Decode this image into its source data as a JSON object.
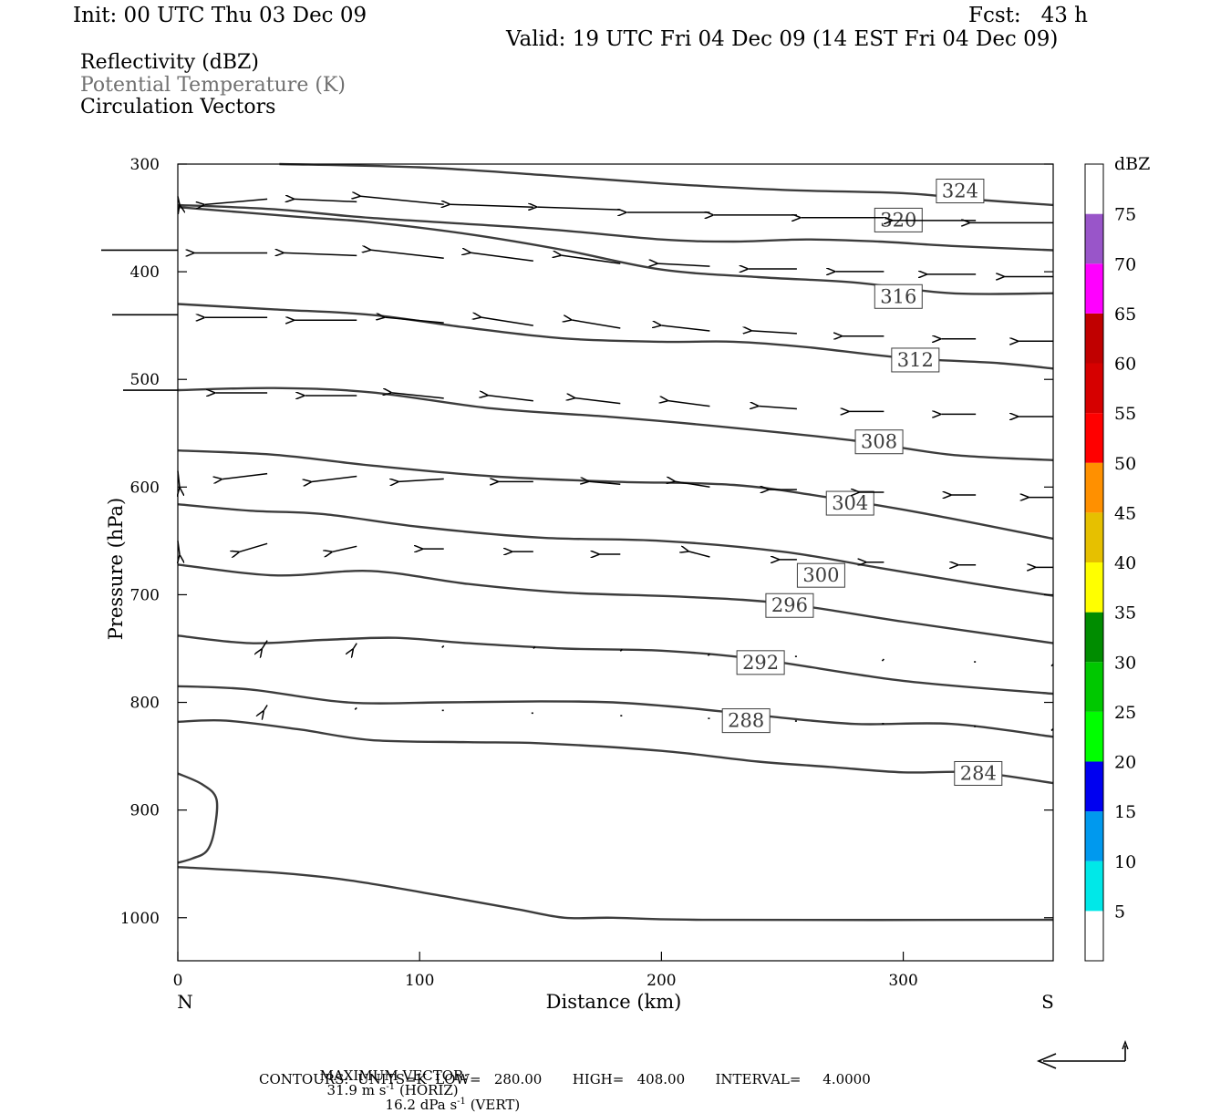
{
  "header": {
    "init": "Init: 00 UTC Thu 03 Dec 09",
    "fcst": "Fcst:   43 h",
    "valid": "Valid: 19 UTC Fri 04 Dec 09 (14 EST Fri 04 Dec 09)",
    "field1": "Reflectivity (dBZ)",
    "field2": "Potential Temperature (K)",
    "field3": "Circulation Vectors"
  },
  "footer": {
    "max_label": "MAXIMUM VECTOR:",
    "max_horiz": "31.9 m s",
    "max_horiz_unit": "(HORIZ)",
    "max_vert": "16.2 dPa s",
    "max_vert_unit": "(VERT)",
    "exponent": "-1",
    "contours": "CONTOURS:  UNITS=K  LOW=   280.00       HIGH=   408.00       INTERVAL=     4.0000"
  },
  "chart_data": {
    "type": "cross-section",
    "xlabel": "Distance (km)",
    "ylabel": "Pressure (hPa)",
    "xlim": [
      0,
      362
    ],
    "ylim": [
      1040,
      300
    ],
    "x_ticks": [
      0,
      100,
      200,
      300
    ],
    "y_ticks": [
      300,
      400,
      500,
      600,
      700,
      800,
      900,
      1000
    ],
    "left_end_label": "N",
    "right_end_label": "S",
    "colorbar": {
      "title": "dBZ",
      "levels": [
        5,
        10,
        15,
        20,
        25,
        30,
        35,
        40,
        45,
        50,
        55,
        60,
        65,
        70,
        75
      ],
      "colors": [
        "#ffffff",
        "#00e8e8",
        "#0099ee",
        "#0000f0",
        "#00ff00",
        "#00c800",
        "#008c00",
        "#ffff00",
        "#e6c000",
        "#ff9000",
        "#ff0000",
        "#d60000",
        "#c00000",
        "#ff00ff",
        "#9955c9",
        "#ffffff"
      ]
    },
    "theta_contours": [
      {
        "value": 324,
        "points": [
          [
            42,
            300
          ],
          [
            100,
            303
          ],
          [
            150,
            310
          ],
          [
            200,
            318
          ],
          [
            250,
            324
          ],
          [
            300,
            327
          ],
          [
            330,
            333
          ],
          [
            362,
            338
          ]
        ],
        "label_at": [
          323.5,
          325
        ]
      },
      {
        "value": 320,
        "points": [
          [
            0,
            338
          ],
          [
            40,
            342
          ],
          [
            80,
            350
          ],
          [
            150,
            360
          ],
          [
            200,
            370
          ],
          [
            230,
            372
          ],
          [
            260,
            370
          ],
          [
            290,
            372
          ],
          [
            320,
            376
          ],
          [
            362,
            380
          ]
        ],
        "label_at": [
          298,
          352
        ]
      },
      {
        "value": 316,
        "points": [
          [
            0,
            340
          ],
          [
            50,
            349
          ],
          [
            80,
            354
          ],
          [
            120,
            365
          ],
          [
            160,
            380
          ],
          [
            200,
            398
          ],
          [
            240,
            405
          ],
          [
            280,
            410
          ],
          [
            320,
            420
          ],
          [
            362,
            420
          ]
        ],
        "label_at": [
          298,
          423
        ]
      },
      {
        "value": 312,
        "points": [
          [
            0,
            430
          ],
          [
            40,
            435
          ],
          [
            80,
            440
          ],
          [
            120,
            452
          ],
          [
            160,
            462
          ],
          [
            200,
            465
          ],
          [
            230,
            465
          ],
          [
            260,
            470
          ],
          [
            300,
            480
          ],
          [
            340,
            485
          ],
          [
            362,
            490
          ]
        ],
        "label_at": [
          305,
          482
        ]
      },
      {
        "value": 308,
        "points": [
          [
            0,
            510
          ],
          [
            40,
            508
          ],
          [
            80,
            512
          ],
          [
            130,
            527
          ],
          [
            180,
            535
          ],
          [
            230,
            545
          ],
          [
            280,
            557
          ],
          [
            320,
            570
          ],
          [
            362,
            575
          ]
        ],
        "label_at": [
          290,
          558
        ]
      },
      {
        "value": 304,
        "points": [
          [
            0,
            566
          ],
          [
            40,
            570
          ],
          [
            80,
            580
          ],
          [
            130,
            590
          ],
          [
            180,
            595
          ],
          [
            230,
            598
          ],
          [
            270,
            610
          ],
          [
            310,
            625
          ],
          [
            362,
            648
          ]
        ],
        "label_at": [
          278,
          615
        ]
      },
      {
        "value": 300,
        "points": [
          [
            0,
            616
          ],
          [
            30,
            622
          ],
          [
            60,
            625
          ],
          [
            100,
            637
          ],
          [
            150,
            647
          ],
          [
            200,
            650
          ],
          [
            250,
            660
          ],
          [
            290,
            675
          ],
          [
            330,
            690
          ],
          [
            362,
            701
          ]
        ],
        "label_at": [
          266,
          682
        ]
      },
      {
        "value": 296,
        "points": [
          [
            0,
            672
          ],
          [
            40,
            682
          ],
          [
            80,
            678
          ],
          [
            120,
            690
          ],
          [
            160,
            698
          ],
          [
            210,
            702
          ],
          [
            250,
            708
          ],
          [
            300,
            725
          ],
          [
            362,
            745
          ]
        ],
        "label_at": [
          253,
          710
        ]
      },
      {
        "value": 292,
        "points": [
          [
            0,
            738
          ],
          [
            30,
            745
          ],
          [
            60,
            742
          ],
          [
            90,
            740
          ],
          [
            120,
            745
          ],
          [
            160,
            750
          ],
          [
            200,
            752
          ],
          [
            240,
            760
          ],
          [
            300,
            780
          ],
          [
            362,
            792
          ]
        ],
        "label_at": [
          241,
          763
        ]
      },
      {
        "value": 288,
        "points": [
          [
            0,
            785
          ],
          [
            30,
            788
          ],
          [
            70,
            800
          ],
          [
            110,
            800
          ],
          [
            150,
            799
          ],
          [
            180,
            800
          ],
          [
            210,
            805
          ],
          [
            240,
            812
          ],
          [
            280,
            820
          ],
          [
            320,
            820
          ],
          [
            362,
            832
          ]
        ],
        "label_at": [
          235,
          817
        ]
      },
      {
        "value": 284,
        "points": [
          [
            0,
            818
          ],
          [
            20,
            817
          ],
          [
            50,
            825
          ],
          [
            80,
            835
          ],
          [
            120,
            837
          ],
          [
            150,
            838
          ],
          [
            200,
            845
          ],
          [
            240,
            855
          ],
          [
            270,
            860
          ],
          [
            300,
            865
          ],
          [
            330,
            865
          ],
          [
            362,
            875
          ]
        ],
        "label_at": [
          331,
          866
        ]
      },
      {
        "value": 0,
        "points": [
          [
            0,
            953
          ],
          [
            40,
            958
          ],
          [
            70,
            965
          ],
          [
            110,
            980
          ],
          [
            140,
            992
          ],
          [
            160,
            1000
          ],
          [
            180,
            1000
          ],
          [
            220,
            1002
          ],
          [
            362,
            1002
          ]
        ],
        "label_at": null
      },
      {
        "value": 0,
        "points": [
          [
            0,
            866
          ],
          [
            10,
            876
          ],
          [
            16,
            890
          ],
          [
            15,
            920
          ],
          [
            12,
            938
          ],
          [
            6,
            945
          ],
          [
            0,
            949
          ]
        ],
        "label_at": null
      }
    ],
    "vectors_rows": [
      {
        "p": 330,
        "xs": [
          0,
          37,
          74,
          110,
          147,
          183,
          220,
          256,
          292,
          330,
          362
        ],
        "u": [
          -60,
          -36,
          -36,
          -48,
          -48,
          -48,
          -48,
          -48,
          -48,
          -48,
          -48
        ],
        "w": [
          3,
          2,
          -1,
          -3,
          -1,
          -1,
          0,
          0,
          0,
          0,
          0
        ]
      },
      {
        "p": 380,
        "xs": [
          0,
          37,
          74,
          110,
          147,
          183,
          220,
          256,
          292,
          330,
          362
        ],
        "u": [
          -42,
          -42,
          -42,
          -42,
          -36,
          -34,
          -30,
          -28,
          -28,
          -28,
          -28
        ],
        "w": [
          0,
          0,
          -1,
          -3,
          -3,
          -3,
          -1,
          0,
          0,
          0,
          0
        ]
      },
      {
        "p": 440,
        "xs": [
          0,
          37,
          74,
          110,
          147,
          183,
          220,
          256,
          292,
          330,
          362
        ],
        "u": [
          -36,
          -36,
          -36,
          -34,
          -30,
          -28,
          -28,
          -26,
          -24,
          -20,
          -20
        ],
        "w": [
          0,
          0,
          0,
          -2,
          -3,
          -3,
          -2,
          -1,
          0,
          0,
          0
        ]
      },
      {
        "p": 510,
        "xs": [
          0,
          37,
          74,
          110,
          147,
          183,
          220,
          256,
          292,
          330,
          362
        ],
        "u": [
          -30,
          -30,
          -30,
          -30,
          -26,
          -26,
          -24,
          -22,
          -20,
          -20,
          -20
        ],
        "w": [
          0,
          0,
          0,
          -2,
          -2,
          -2,
          -2,
          -1,
          0,
          0,
          0
        ]
      },
      {
        "p": 585,
        "xs": [
          0,
          37,
          74,
          110,
          147,
          183,
          220,
          256,
          292,
          330,
          362
        ],
        "u": [
          -26,
          -26,
          -26,
          -26,
          -20,
          -18,
          -20,
          -16,
          -14,
          -14,
          -14
        ],
        "w": [
          6,
          2,
          2,
          1,
          0,
          -1,
          -2,
          0,
          0,
          0,
          0
        ]
      },
      {
        "p": 650,
        "xs": [
          0,
          37,
          74,
          110,
          147,
          183,
          220,
          256,
          292,
          330,
          362
        ],
        "u": [
          -18,
          -16,
          -14,
          -12,
          -12,
          -12,
          -12,
          -10,
          -10,
          -10,
          -10
        ],
        "w": [
          5,
          3,
          2,
          0,
          0,
          0,
          -2,
          0,
          0,
          0,
          0
        ]
      },
      {
        "p": 740,
        "xs": [
          37,
          74,
          110,
          147,
          183,
          220,
          256,
          292,
          330,
          362
        ],
        "u": [
          -3,
          -2,
          -1,
          1,
          1,
          -1,
          -1,
          -1,
          -1,
          -1
        ],
        "w": [
          3,
          2,
          1,
          -1,
          -1,
          1,
          0,
          1,
          0,
          1
        ]
      },
      {
        "p": 800,
        "xs": [
          37,
          74,
          110,
          147,
          183,
          220,
          256,
          292,
          330,
          362
        ],
        "u": [
          -2,
          -1,
          0,
          0,
          1,
          -1,
          -1,
          -1,
          -1,
          -1
        ],
        "w": [
          2,
          1,
          0,
          0,
          0,
          0,
          0,
          0,
          0,
          1
        ]
      }
    ]
  }
}
